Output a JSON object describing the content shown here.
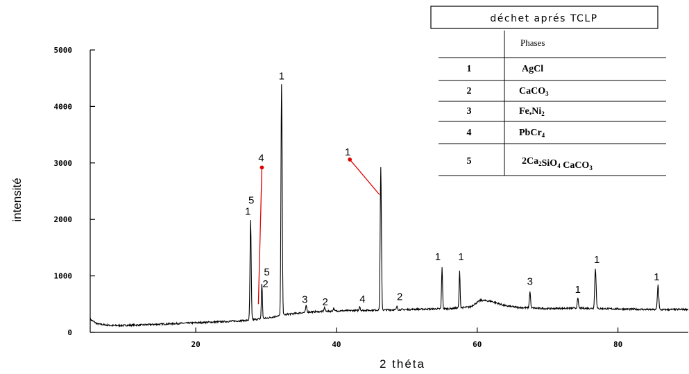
{
  "chart_data": {
    "type": "line",
    "title": "",
    "xlabel": "2 théta",
    "ylabel": "intensité",
    "xlim": [
      5,
      90
    ],
    "ylim": [
      0,
      5000
    ],
    "x_ticks": [
      20,
      40,
      60,
      80
    ],
    "x_tick_labels": [
      "20",
      "40",
      "60",
      "80"
    ],
    "y_ticks": [
      0,
      1000,
      2000,
      3000,
      4000,
      5000
    ],
    "y_tick_labels": [
      "0",
      "1000",
      "2000",
      "3000",
      "4000",
      "5000"
    ],
    "grid": false,
    "baseline": [
      [
        5,
        230
      ],
      [
        6,
        150
      ],
      [
        8,
        120
      ],
      [
        12,
        130
      ],
      [
        16,
        150
      ],
      [
        20,
        170
      ],
      [
        24,
        190
      ],
      [
        27,
        210
      ],
      [
        30,
        250
      ],
      [
        33,
        320
      ],
      [
        36,
        360
      ],
      [
        40,
        380
      ],
      [
        44,
        390
      ],
      [
        48,
        400
      ],
      [
        52,
        410
      ],
      [
        56,
        420
      ],
      [
        59,
        450
      ],
      [
        60.5,
        570
      ],
      [
        62,
        550
      ],
      [
        64,
        470
      ],
      [
        66,
        440
      ],
      [
        70,
        420
      ],
      [
        74,
        430
      ],
      [
        78,
        420
      ],
      [
        82,
        410
      ],
      [
        86,
        400
      ],
      [
        90,
        410
      ]
    ],
    "peaks": [
      {
        "x": 27.8,
        "y": 1980,
        "width": 0.3
      },
      {
        "x": 29.4,
        "y": 860,
        "width": 0.25
      },
      {
        "x": 32.2,
        "y": 4380,
        "width": 0.3
      },
      {
        "x": 35.7,
        "y": 470,
        "width": 0.3
      },
      {
        "x": 38.3,
        "y": 440,
        "width": 0.3
      },
      {
        "x": 39.6,
        "y": 430,
        "width": 0.25
      },
      {
        "x": 43.3,
        "y": 470,
        "width": 0.25
      },
      {
        "x": 46.3,
        "y": 2920,
        "width": 0.3
      },
      {
        "x": 48.6,
        "y": 460,
        "width": 0.25
      },
      {
        "x": 55.0,
        "y": 1150,
        "width": 0.25
      },
      {
        "x": 57.5,
        "y": 1080,
        "width": 0.25
      },
      {
        "x": 67.5,
        "y": 720,
        "width": 0.3
      },
      {
        "x": 74.3,
        "y": 600,
        "width": 0.3
      },
      {
        "x": 76.8,
        "y": 1120,
        "width": 0.35
      },
      {
        "x": 85.7,
        "y": 840,
        "width": 0.35
      }
    ],
    "peak_labels": [
      {
        "text": "1",
        "x": 27.4,
        "y": 2080
      },
      {
        "text": "5",
        "x": 27.9,
        "y": 2280
      },
      {
        "text": "2",
        "x": 29.9,
        "y": 800
      },
      {
        "text": "5",
        "x": 30.1,
        "y": 1010
      },
      {
        "text": "4",
        "x": 29.3,
        "y": 3030
      },
      {
        "text": "1",
        "x": 32.2,
        "y": 4480
      },
      {
        "text": "3",
        "x": 35.5,
        "y": 520
      },
      {
        "text": "2",
        "x": 38.4,
        "y": 480
      },
      {
        "text": "4",
        "x": 43.7,
        "y": 530
      },
      {
        "text": "1",
        "x": 41.6,
        "y": 3130
      },
      {
        "text": "2",
        "x": 49.0,
        "y": 570
      },
      {
        "text": "1",
        "x": 54.4,
        "y": 1280
      },
      {
        "text": "1",
        "x": 57.7,
        "y": 1280
      },
      {
        "text": "3",
        "x": 67.5,
        "y": 840
      },
      {
        "text": "1",
        "x": 74.3,
        "y": 700
      },
      {
        "text": "1",
        "x": 77.0,
        "y": 1230
      },
      {
        "text": "1",
        "x": 85.5,
        "y": 920
      }
    ],
    "annotations": [
      {
        "type": "arrow",
        "from": [
          28.9,
          500
        ],
        "to": [
          29.4,
          2920
        ],
        "color": "#e00000"
      },
      {
        "type": "arrow",
        "from": [
          46.1,
          2440
        ],
        "to": [
          41.9,
          3060
        ],
        "color": "#e00000"
      }
    ],
    "colors": {
      "line": "#000000",
      "arrow": "#e00000"
    }
  },
  "legend": {
    "title": "déchet aprés TCLP",
    "header": "Phases",
    "rows": [
      {
        "num": "1",
        "phase": "AgCl",
        "sub": []
      },
      {
        "num": "2",
        "phase": "CaCO3",
        "sub": [
          {
            "after": "CaCO",
            "text": "3"
          }
        ]
      },
      {
        "num": "3",
        "phase": "Fe,Ni2",
        "sub": [
          {
            "after": "Fe,Ni",
            "text": "2"
          }
        ]
      },
      {
        "num": "4",
        "phase": "PbCr4",
        "sub": [
          {
            "after": "Pb Cr",
            "text": "4"
          }
        ]
      },
      {
        "num": "5",
        "phase": "2Ca2SiO4 CaCO3",
        "sub": []
      }
    ]
  }
}
